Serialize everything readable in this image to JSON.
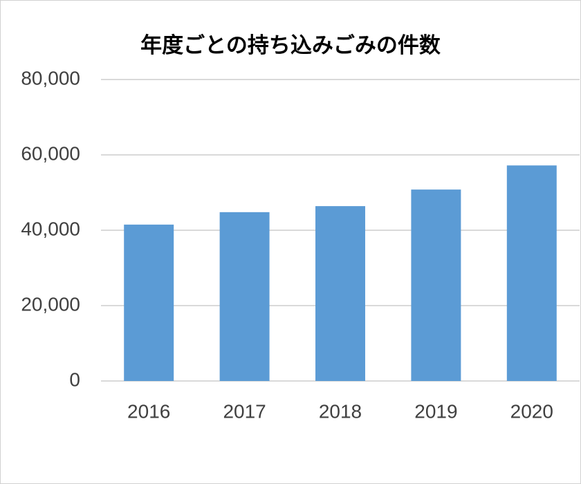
{
  "chart_data": {
    "type": "bar",
    "title": "年度ごとの持ち込みごみの件数",
    "categories": [
      "2016",
      "2017",
      "2018",
      "2019",
      "2020"
    ],
    "values": [
      41500,
      44800,
      46400,
      50800,
      57200
    ],
    "color": "#5b9bd5",
    "ylim": [
      0,
      80000
    ],
    "yticks": [
      0,
      {
        "value": 20000,
        "label": "20,000"
      },
      {
        "value": 40000,
        "label": "40,000"
      },
      {
        "value": 60000,
        "label": "60,000"
      },
      {
        "value": 80000,
        "label": "80,000"
      }
    ],
    "grid": true
  }
}
